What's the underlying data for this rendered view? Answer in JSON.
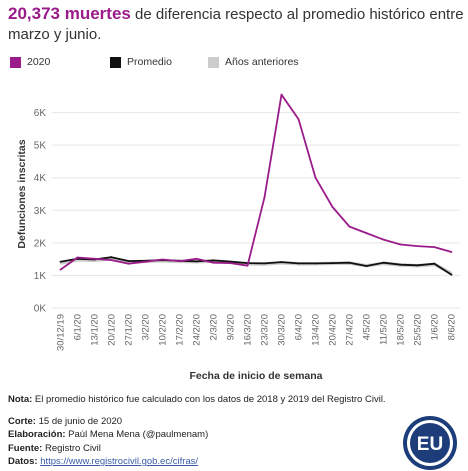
{
  "headline": {
    "highlight": "20,373 muertes",
    "rest": " de diferencia respecto al promedio histórico entre marzo y junio."
  },
  "colors": {
    "y2020": "#9b1b8a",
    "promedio": "#111111",
    "anteriores": "#cccccc"
  },
  "chart_data": {
    "type": "line",
    "xlabel": "Fecha de inicio de semana",
    "ylabel": "Defunciones inscritas",
    "ylim": [
      0,
      7000
    ],
    "yticks": [
      0,
      1000,
      2000,
      3000,
      4000,
      5000,
      6000
    ],
    "ytick_labels": [
      "0K",
      "1K",
      "2K",
      "3K",
      "4K",
      "5K",
      "6K"
    ],
    "grid": true,
    "legend_placement": "top",
    "categories": [
      "30/12/19",
      "6/1/20",
      "13/1/20",
      "20/1/20",
      "27/1/20",
      "3/2/20",
      "10/2/20",
      "17/2/20",
      "24/2/20",
      "2/3/20",
      "9/3/20",
      "16/3/20",
      "23/3/20",
      "30/3/20",
      "6/4/20",
      "13/4/20",
      "20/4/20",
      "27/4/20",
      "4/5/20",
      "11/5/20",
      "18/5/20",
      "25/5/20",
      "1/6/20",
      "8/6/20"
    ],
    "series": [
      {
        "name": "2020",
        "values": [
          1180,
          1550,
          1510,
          1470,
          1360,
          1420,
          1490,
          1440,
          1510,
          1390,
          1380,
          1300,
          3400,
          6550,
          5800,
          4000,
          3100,
          2500,
          2300,
          2100,
          1950,
          1900,
          1870,
          1720
        ]
      },
      {
        "name": "Promedio",
        "values": [
          1420,
          1510,
          1490,
          1560,
          1440,
          1450,
          1470,
          1450,
          1430,
          1460,
          1420,
          1380,
          1370,
          1410,
          1370,
          1370,
          1380,
          1390,
          1290,
          1390,
          1330,
          1310,
          1360,
          1020
        ]
      },
      {
        "name": "Años anteriores",
        "values": [
          1380,
          1480,
          1460,
          1520,
          1420,
          1430,
          1450,
          1430,
          1420,
          1440,
          1410,
          1360,
          1350,
          1390,
          1360,
          1360,
          1370,
          1380,
          1300,
          1370,
          1320,
          1300,
          1340,
          1060
        ]
      }
    ]
  },
  "notes": {
    "nota_label": "Nota:",
    "nota_text": " El promedio histórico fue calculado con los datos de 2018 y 2019 del Registro Civil.",
    "corte_label": "Corte:",
    "corte_text": " 15 de junio de 2020",
    "elab_label": "Elaboración:",
    "elab_text": " Paúl Mena Mena (@paulmenam)",
    "fuente_label": "Fuente:",
    "fuente_text": " Registro Civil",
    "datos_label": "Datos:",
    "datos_text": "https://www.registrocivil.gob.ec/cifras/"
  },
  "logo_text": "EU"
}
